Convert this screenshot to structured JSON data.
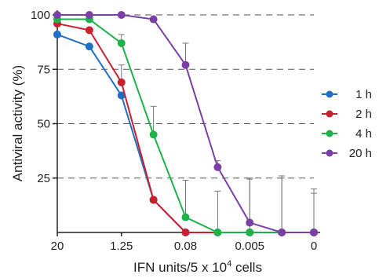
{
  "chart_data": {
    "type": "line",
    "xlabel": "IFN units/5 x 10",
    "xlabel_sup": "4",
    "xlabel_tail": " cells",
    "ylabel": "Antiviral activity (%)",
    "x_tick_labels": [
      "20",
      "1.25",
      "0.08",
      "0.005",
      "0"
    ],
    "y_ticks": [
      25,
      50,
      75,
      100
    ],
    "ylim": [
      0,
      100
    ],
    "grid": "horizontal dashed",
    "legend_position": "right",
    "series": [
      {
        "name": "1 h",
        "color": "#1f6fc5",
        "values": [
          91,
          85.5,
          63,
          15,
          0,
          0,
          0,
          0,
          0
        ],
        "errors": [
          0,
          0,
          0,
          0,
          0,
          0,
          0,
          0,
          0
        ]
      },
      {
        "name": "2 h",
        "color": "#c8202f",
        "values": [
          96,
          93,
          69,
          15,
          0,
          0,
          0,
          0,
          0
        ],
        "errors": [
          0,
          0,
          8,
          0,
          0,
          0,
          0,
          0,
          0
        ]
      },
      {
        "name": "4 h",
        "color": "#1db34a",
        "values": [
          98,
          98,
          87,
          45,
          7,
          0,
          0,
          0,
          0
        ],
        "errors": [
          0,
          0,
          4,
          13,
          17,
          19,
          25,
          26,
          20
        ]
      },
      {
        "name": "20 h",
        "color": "#7b3fa6",
        "values": [
          100,
          100,
          100,
          98,
          77,
          30,
          4.5,
          0,
          0
        ],
        "errors": [
          0,
          0,
          0,
          0,
          10,
          3,
          20,
          25,
          18
        ]
      }
    ]
  }
}
